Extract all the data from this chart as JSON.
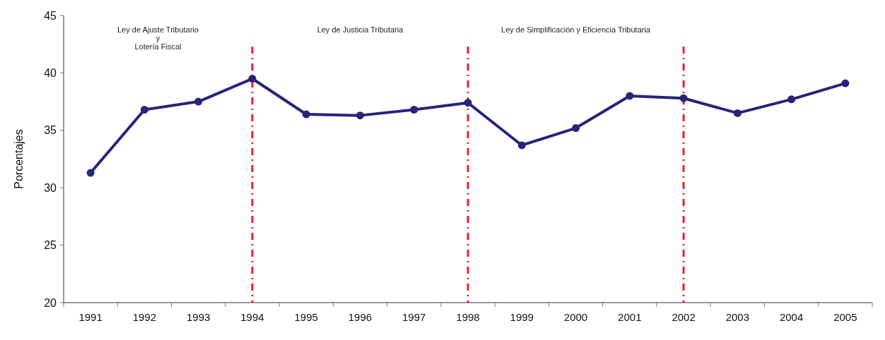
{
  "chart_data": {
    "type": "line",
    "ylabel": "Porcentajes",
    "categories": [
      "1991",
      "1992",
      "1993",
      "1994",
      "1995",
      "1996",
      "1997",
      "1998",
      "1999",
      "2000",
      "2001",
      "2002",
      "2003",
      "2004",
      "2005"
    ],
    "series": [
      {
        "color": "#27247a",
        "values": [
          31.3,
          36.8,
          37.5,
          39.5,
          36.4,
          36.3,
          36.8,
          37.4,
          33.7,
          35.2,
          38.0,
          37.8,
          36.5,
          37.7,
          39.1
        ]
      }
    ],
    "ylim": [
      20,
      45
    ],
    "yticks": [
      20,
      25,
      30,
      35,
      40,
      45
    ],
    "marker": "circle",
    "line_style": "solid",
    "grid": false,
    "ref_lines": [
      {
        "axis": "x",
        "value": "1994",
        "color": "#e8202a",
        "line_style": "dashdot"
      },
      {
        "axis": "x",
        "value": "1998",
        "color": "#e8202a",
        "line_style": "dashdot"
      },
      {
        "axis": "x",
        "value": "2002",
        "color": "#e8202a",
        "line_style": "dashdot"
      }
    ],
    "annotations": [
      "Ley de Ajuste Tributario\ny\nLotería Fiscal",
      "Ley de Justicia Tributaria",
      "Ley de Simplificación  y  Eficiencia Tributaria"
    ]
  }
}
